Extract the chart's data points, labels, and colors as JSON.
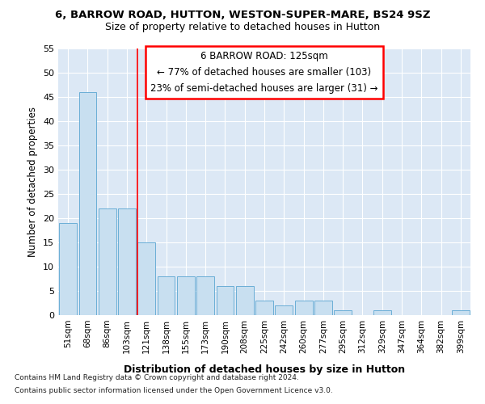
{
  "title1": "6, BARROW ROAD, HUTTON, WESTON-SUPER-MARE, BS24 9SZ",
  "title2": "Size of property relative to detached houses in Hutton",
  "xlabel": "Distribution of detached houses by size in Hutton",
  "ylabel": "Number of detached properties",
  "categories": [
    "51sqm",
    "68sqm",
    "86sqm",
    "103sqm",
    "121sqm",
    "138sqm",
    "155sqm",
    "173sqm",
    "190sqm",
    "208sqm",
    "225sqm",
    "242sqm",
    "260sqm",
    "277sqm",
    "295sqm",
    "312sqm",
    "329sqm",
    "347sqm",
    "364sqm",
    "382sqm",
    "399sqm"
  ],
  "values": [
    19,
    46,
    22,
    22,
    15,
    8,
    8,
    8,
    6,
    6,
    3,
    2,
    3,
    3,
    1,
    0,
    1,
    0,
    0,
    0,
    1
  ],
  "bar_color": "#c8dff0",
  "bar_edgecolor": "#6aaed6",
  "red_line_index": 4,
  "annotation_title": "6 BARROW ROAD: 125sqm",
  "annotation_line1": "← 77% of detached houses are smaller (103)",
  "annotation_line2": "23% of semi-detached houses are larger (31) →",
  "ylim": [
    0,
    55
  ],
  "yticks": [
    0,
    5,
    10,
    15,
    20,
    25,
    30,
    35,
    40,
    45,
    50,
    55
  ],
  "footnote1": "Contains HM Land Registry data © Crown copyright and database right 2024.",
  "footnote2": "Contains public sector information licensed under the Open Government Licence v3.0.",
  "bg_color": "#ffffff",
  "plot_bg_color": "#dce8f5",
  "grid_color": "#ffffff"
}
